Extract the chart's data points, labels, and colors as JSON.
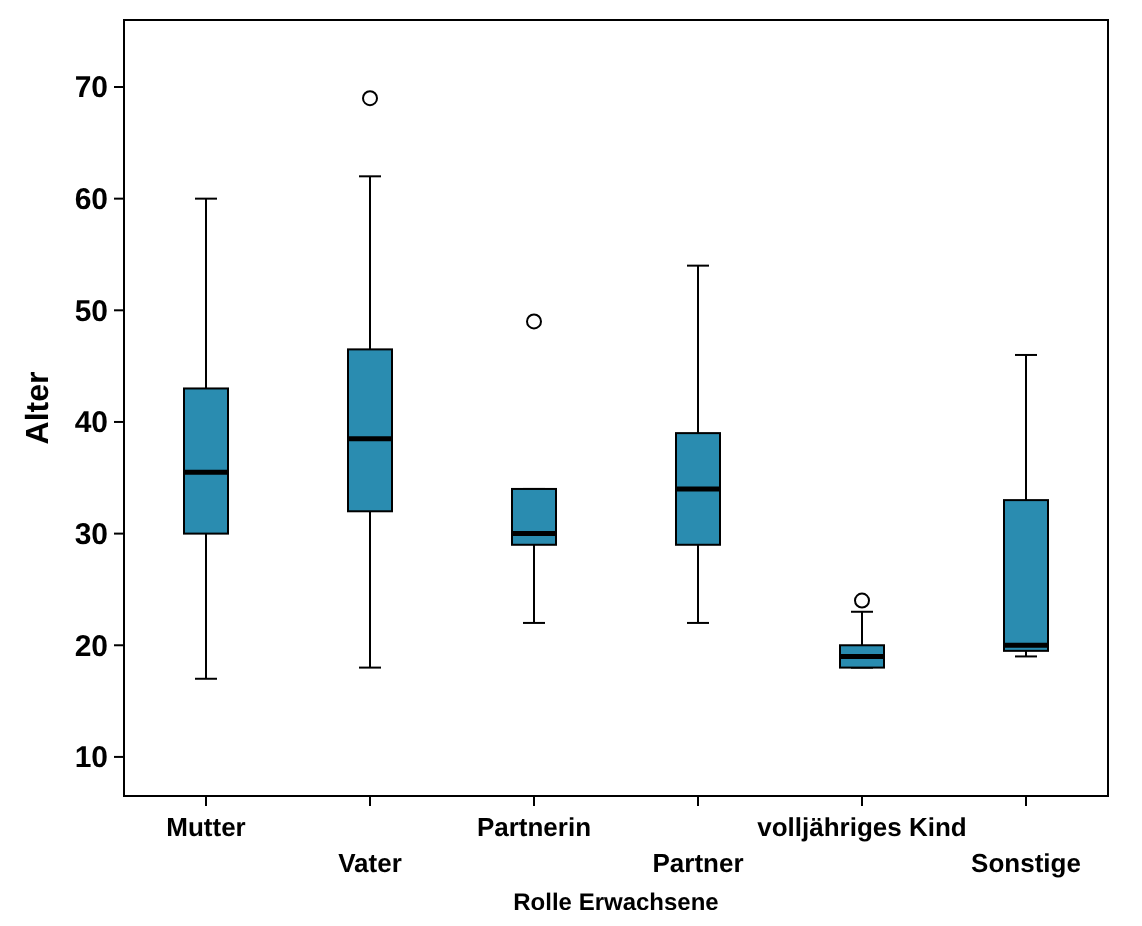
{
  "chart_data": {
    "type": "box",
    "xlabel": "Rolle Erwachsene",
    "ylabel": "Alter",
    "categories": [
      "Mutter",
      "Vater",
      "Partnerin",
      "Partner",
      "volljähriges Kind",
      "Sonstige"
    ],
    "color": "#2a8cb0",
    "ylim": [
      6.5,
      76
    ],
    "yticks": [
      10,
      20,
      30,
      40,
      50,
      60,
      70
    ],
    "grid": false,
    "boxes": [
      {
        "low": 17,
        "q1": 30,
        "median": 35.5,
        "q3": 43,
        "high": 60
      },
      {
        "low": 18,
        "q1": 32,
        "median": 38.5,
        "q3": 46.5,
        "high": 62,
        "outliers": [
          69
        ]
      },
      {
        "low": 22,
        "q1": 29,
        "median": 30,
        "q3": 34,
        "high": 34,
        "outliers": [
          49
        ]
      },
      {
        "low": 22,
        "q1": 29,
        "median": 34,
        "q3": 39,
        "high": 54
      },
      {
        "low": 18,
        "q1": 18,
        "median": 19,
        "q3": 20,
        "high": 23,
        "outliers": [
          24
        ]
      },
      {
        "low": 19,
        "q1": 19.5,
        "median": 20,
        "q3": 33,
        "high": 46
      }
    ]
  }
}
